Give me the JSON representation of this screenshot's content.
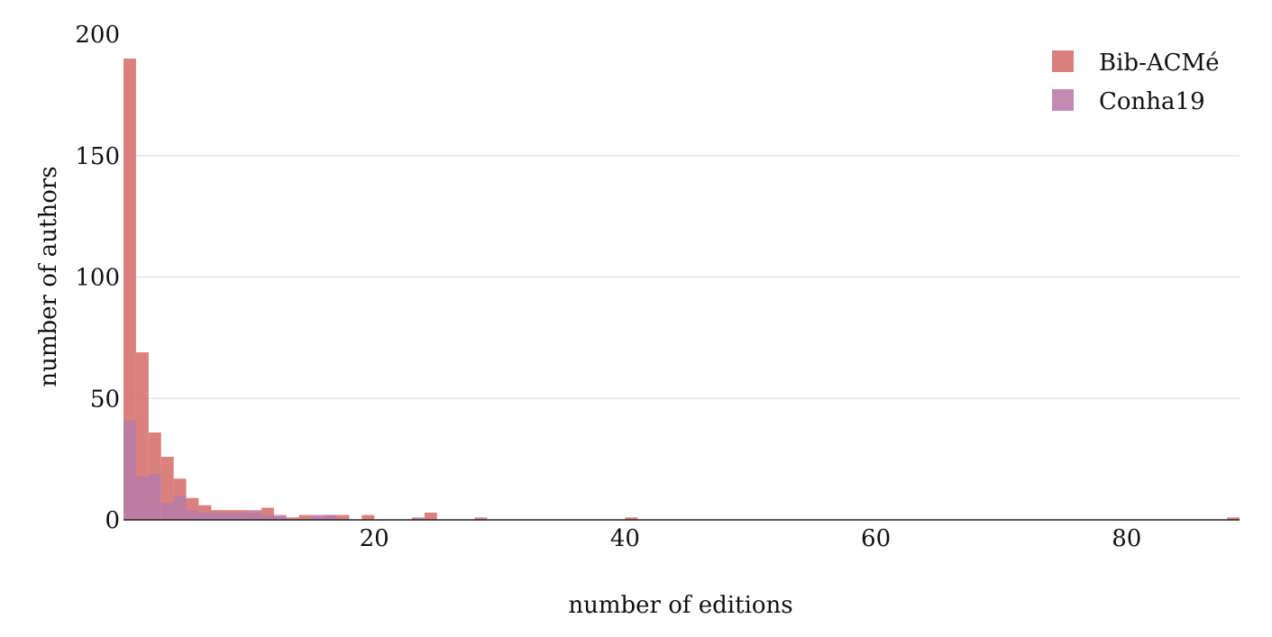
{
  "chart_data": {
    "type": "bar",
    "subtype": "overlaid-histogram",
    "title": "",
    "xlabel": "number of editions",
    "ylabel": "number of authors",
    "xlim": [
      0,
      89
    ],
    "ylim": [
      0,
      200
    ],
    "bin_width": 1,
    "x_ticks": [
      20,
      40,
      60,
      80
    ],
    "y_ticks": [
      0,
      50,
      100,
      150,
      200
    ],
    "grid": "horizontal",
    "legend_position": "top-right",
    "series": [
      {
        "name": "Bib-ACMé",
        "color": "#d5706b",
        "opacity": 0.88,
        "bins": [
          {
            "x": 0,
            "value": 190
          },
          {
            "x": 1,
            "value": 69
          },
          {
            "x": 2,
            "value": 36
          },
          {
            "x": 3,
            "value": 26
          },
          {
            "x": 4,
            "value": 17
          },
          {
            "x": 5,
            "value": 9
          },
          {
            "x": 6,
            "value": 6
          },
          {
            "x": 7,
            "value": 4
          },
          {
            "x": 8,
            "value": 4
          },
          {
            "x": 9,
            "value": 4
          },
          {
            "x": 10,
            "value": 3
          },
          {
            "x": 11,
            "value": 5
          },
          {
            "x": 12,
            "value": 1
          },
          {
            "x": 13,
            "value": 1
          },
          {
            "x": 14,
            "value": 2
          },
          {
            "x": 15,
            "value": 1
          },
          {
            "x": 16,
            "value": 2
          },
          {
            "x": 17,
            "value": 2
          },
          {
            "x": 19,
            "value": 2
          },
          {
            "x": 24,
            "value": 3
          },
          {
            "x": 40,
            "value": 1
          },
          {
            "x": 88,
            "value": 1
          }
        ]
      },
      {
        "name": "Conha19",
        "color": "#b97aa6",
        "opacity": 0.88,
        "bins": [
          {
            "x": 0,
            "value": 41
          },
          {
            "x": 1,
            "value": 18
          },
          {
            "x": 2,
            "value": 19
          },
          {
            "x": 3,
            "value": 7
          },
          {
            "x": 4,
            "value": 10
          },
          {
            "x": 5,
            "value": 4
          },
          {
            "x": 6,
            "value": 3
          },
          {
            "x": 7,
            "value": 3
          },
          {
            "x": 8,
            "value": 3
          },
          {
            "x": 9,
            "value": 3
          },
          {
            "x": 10,
            "value": 4
          },
          {
            "x": 11,
            "value": 2
          },
          {
            "x": 12,
            "value": 2
          },
          {
            "x": 15,
            "value": 2
          },
          {
            "x": 16,
            "value": 2
          },
          {
            "x": 23,
            "value": 1
          },
          {
            "x": 28,
            "value": 1
          }
        ]
      }
    ]
  }
}
